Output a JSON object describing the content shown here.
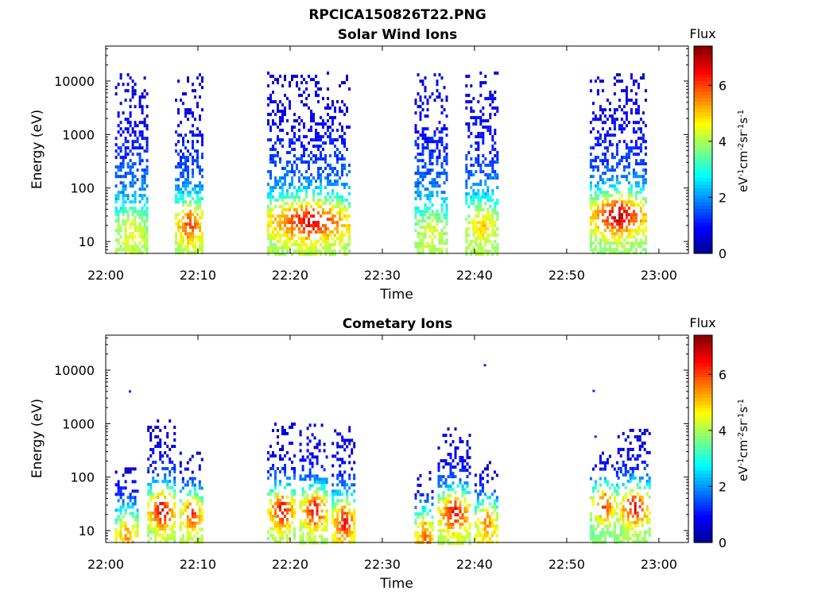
{
  "figure": {
    "title": "RPCICA150826T22.PNG"
  },
  "colors": {
    "colormap": [
      "#00008f",
      "#0000ff",
      "#0080ff",
      "#00ffff",
      "#80ff80",
      "#ffff00",
      "#ff8000",
      "#ff0000",
      "#800000"
    ]
  },
  "chart_data": [
    {
      "type": "heatmap",
      "title": "Solar Wind Ions",
      "xlabel": "Time",
      "ylabel": "Energy (eV)",
      "y_scale": "log",
      "ylim": [
        6,
        45000
      ],
      "xlim": [
        "22:00",
        "23:03"
      ],
      "x_tick_labels": [
        "22:00",
        "22:10",
        "22:20",
        "22:30",
        "22:40",
        "22:50",
        "23:00"
      ],
      "y_ticks": [
        10,
        100,
        1000,
        10000
      ],
      "y_tick_labels": [
        "10",
        "100",
        "1000",
        "10000"
      ],
      "colorbar": {
        "label": "Flux",
        "unit_label": "eV-1cm-2sr-1s-1",
        "range": [
          0,
          7.4
        ],
        "ticks": [
          0,
          2,
          4,
          6
        ],
        "tick_labels": [
          "0",
          "2",
          "4",
          "6"
        ]
      },
      "data_note": "sparse pixel scatter; bursts listed as time intervals in minutes after 22:00",
      "bursts": [
        {
          "t_start": 1.0,
          "t_end": 4.5,
          "e_max": 14000,
          "peak_flux": 4.2,
          "peak_energy": 20
        },
        {
          "t_start": 7.5,
          "t_end": 10.5,
          "e_max": 14000,
          "peak_flux": 6.0,
          "peak_energy": 25
        },
        {
          "t_start": 17.5,
          "t_end": 26.5,
          "e_max": 15000,
          "peak_flux": 6.5,
          "peak_energy": 28
        },
        {
          "t_start": 33.5,
          "t_end": 37.0,
          "e_max": 14000,
          "peak_flux": 4.0,
          "peak_energy": 20
        },
        {
          "t_start": 39.0,
          "t_end": 42.5,
          "e_max": 15000,
          "peak_flux": 4.8,
          "peak_energy": 25
        },
        {
          "t_start": 52.5,
          "t_end": 58.5,
          "e_max": 14000,
          "peak_flux": 7.0,
          "peak_energy": 35
        }
      ]
    },
    {
      "type": "heatmap",
      "title": "Cometary Ions",
      "xlabel": "Time",
      "ylabel": "Energy (eV)",
      "y_scale": "log",
      "ylim": [
        6,
        45000
      ],
      "xlim": [
        "22:00",
        "23:03"
      ],
      "x_tick_labels": [
        "22:00",
        "22:10",
        "22:20",
        "22:30",
        "22:40",
        "22:50",
        "23:00"
      ],
      "y_ticks": [
        10,
        100,
        1000,
        10000
      ],
      "y_tick_labels": [
        "10",
        "100",
        "1000",
        "10000"
      ],
      "colorbar": {
        "label": "Flux",
        "unit_label": "eV-1cm-2sr-1s-1",
        "range": [
          0,
          7.4
        ],
        "ticks": [
          0,
          2,
          4,
          6
        ],
        "tick_labels": [
          "0",
          "2",
          "4",
          "6"
        ]
      },
      "data_note": "sparse pixel scatter; bursts listed as time intervals in minutes after 22:00",
      "bursts": [
        {
          "t_start": 1.0,
          "t_end": 3.5,
          "e_max": 200,
          "peak_flux": 5.0,
          "peak_energy": 12
        },
        {
          "t_start": 4.5,
          "t_end": 7.5,
          "e_max": 1200,
          "peak_flux": 7.2,
          "peak_energy": 28
        },
        {
          "t_start": 8.0,
          "t_end": 10.5,
          "e_max": 300,
          "peak_flux": 7.0,
          "peak_energy": 25
        },
        {
          "t_start": 17.5,
          "t_end": 20.5,
          "e_max": 1200,
          "peak_flux": 7.0,
          "peak_energy": 28
        },
        {
          "t_start": 21.0,
          "t_end": 24.0,
          "e_max": 1000,
          "peak_flux": 7.0,
          "peak_energy": 28
        },
        {
          "t_start": 24.5,
          "t_end": 27.0,
          "e_max": 900,
          "peak_flux": 6.5,
          "peak_energy": 18
        },
        {
          "t_start": 33.5,
          "t_end": 35.5,
          "e_max": 130,
          "peak_flux": 5.5,
          "peak_energy": 12
        },
        {
          "t_start": 36.0,
          "t_end": 39.5,
          "e_max": 850,
          "peak_flux": 7.0,
          "peak_energy": 25
        },
        {
          "t_start": 40.0,
          "t_end": 42.5,
          "e_max": 200,
          "peak_flux": 6.0,
          "peak_energy": 18
        },
        {
          "t_start": 52.5,
          "t_end": 55.5,
          "e_max": 300,
          "peak_flux": 7.2,
          "peak_energy": 35
        },
        {
          "t_start": 55.5,
          "t_end": 59.0,
          "e_max": 800,
          "peak_flux": 7.2,
          "peak_energy": 32
        }
      ],
      "isolated_points": [
        {
          "t": 2.5,
          "energy": 4200
        },
        {
          "t": 41.0,
          "energy": 13000
        },
        {
          "t": 52.8,
          "energy": 4300
        },
        {
          "t": 53.0,
          "energy": 600
        }
      ]
    }
  ]
}
